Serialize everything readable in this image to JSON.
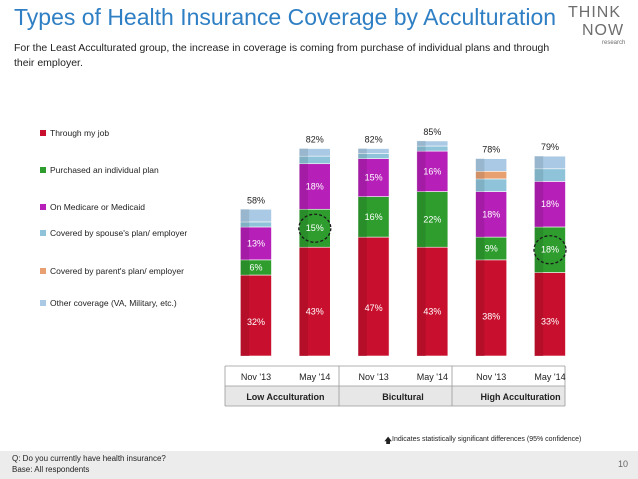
{
  "slide": {
    "title": "Types of Health Insurance Coverage by Acculturation",
    "subtitle": "For the Least Acculturated group, the increase in coverage is coming from purchase of individual plans and through their employer.",
    "logo": {
      "line1": "THINK",
      "line2": "NOW",
      "line3": "research"
    },
    "significance_note": "Indicates statistically significant differences (95% confidence)",
    "significance_icon": "up-arrow-icon",
    "question": "Q: Do you currently have health insurance?",
    "base": "Base: All respondents",
    "page_number": "10"
  },
  "chart_data": {
    "type": "bar",
    "stacked": true,
    "categories": [
      "Nov '13",
      "May '14",
      "Nov '13",
      "May '14",
      "Nov '13",
      "May '14"
    ],
    "groups": [
      {
        "label": "Low Acculturation",
        "span": [
          0,
          1
        ]
      },
      {
        "label": "Bicultural",
        "span": [
          2,
          3
        ]
      },
      {
        "label": "High Acculturation",
        "span": [
          4,
          5
        ]
      }
    ],
    "totals": [
      58,
      82,
      82,
      85,
      78,
      79
    ],
    "total_labels": [
      "58%",
      "82%",
      "82%",
      "85%",
      "78%",
      "79%"
    ],
    "series": [
      {
        "name": "Through my job",
        "color": "#c8102e",
        "values": [
          32,
          43,
          47,
          43,
          38,
          33
        ],
        "labels": [
          "32%",
          "43%",
          "47%",
          "43%",
          "38%",
          "33%"
        ]
      },
      {
        "name": "Purchased an individual plan",
        "color": "#2e9d2e",
        "values": [
          6,
          15,
          16,
          22,
          9,
          18
        ],
        "labels": [
          "6%",
          "15%",
          "16%",
          "22%",
          "9%",
          "18%"
        ]
      },
      {
        "name": "On Medicare or Medicaid",
        "color": "#b620b8",
        "values": [
          13,
          18,
          15,
          16,
          18,
          18
        ],
        "labels": [
          "13%",
          "18%",
          "15%",
          "16%",
          "18%",
          "18%"
        ]
      },
      {
        "name": "Covered by spouse's plan/ employer",
        "color": "#8fc3d9",
        "values": [
          2,
          3,
          2,
          2,
          5,
          5
        ],
        "labels": [
          "",
          "",
          "",
          "",
          "",
          ""
        ]
      },
      {
        "name": "Covered by parent's plan/ employer",
        "color": "#e8a070",
        "values": [
          0,
          0,
          0,
          0,
          3,
          0
        ],
        "labels": [
          "",
          "",
          "",
          "",
          "",
          ""
        ]
      },
      {
        "name": "Other coverage (VA, Military, etc.)",
        "color": "#a9c9e4",
        "values": [
          5,
          3,
          2,
          2,
          5,
          5
        ],
        "labels": [
          "",
          "",
          "",
          "",
          "",
          ""
        ]
      }
    ],
    "highlighted": [
      {
        "series": 1,
        "category": 1
      },
      {
        "series": 1,
        "category": 5
      }
    ],
    "legend": "left",
    "ylim": [
      0,
      100
    ],
    "grid": false
  }
}
